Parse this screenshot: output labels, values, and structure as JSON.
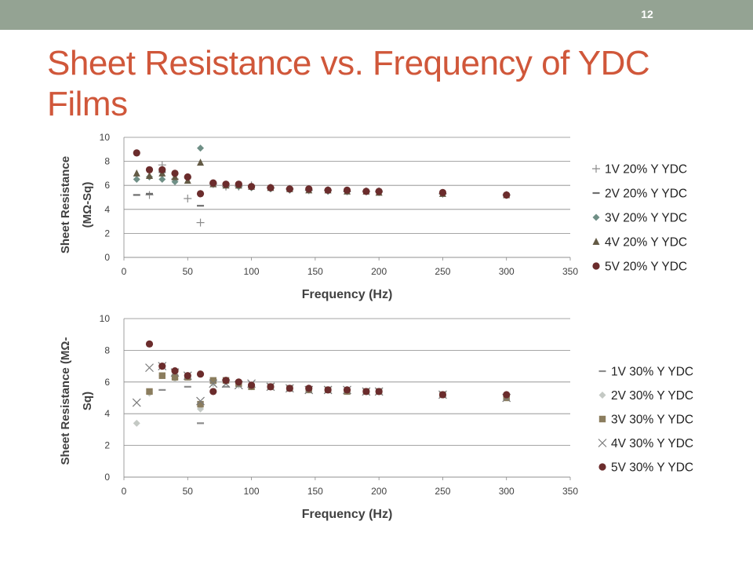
{
  "slide": {
    "page_number": "12",
    "title": "Sheet Resistance vs. Frequency of YDC Films"
  },
  "colors": {
    "topbar": "#94a393",
    "title": "#d0573a",
    "gridline": "#888888",
    "axis_text": "#404040"
  },
  "chart_data": [
    {
      "type": "scatter",
      "title": "",
      "xlabel": "Frequency (Hz)",
      "ylabel_lines": [
        "Sheet Resistance",
        "(MΩ-Sq)"
      ],
      "xlim": [
        0,
        350
      ],
      "ylim": [
        0,
        10
      ],
      "xticks": [
        0,
        50,
        100,
        150,
        200,
        250,
        300,
        350
      ],
      "yticks": [
        0,
        2,
        4,
        6,
        8,
        10
      ],
      "grid": "horizontal",
      "legend_position": "right",
      "series": [
        {
          "name": "1V 20% Y YDC",
          "marker": "plus",
          "color": "#8c8c8c",
          "x": [
            20,
            30,
            50,
            60,
            70,
            80,
            90,
            100,
            115,
            130,
            145,
            160,
            175,
            190,
            200,
            250,
            300
          ],
          "y": [
            5.2,
            7.7,
            4.9,
            2.9,
            6.1,
            5.9,
            5.9,
            6.0,
            5.8,
            5.7,
            5.6,
            5.6,
            5.5,
            5.5,
            5.5,
            5.3,
            5.2
          ]
        },
        {
          "name": "2V 20% Y YDC",
          "marker": "dash",
          "color": "#6e6e6e",
          "x": [
            10,
            20,
            30,
            40,
            50,
            60,
            70,
            80,
            90,
            100,
            115,
            130,
            145,
            160,
            175,
            190,
            200,
            250,
            300
          ],
          "y": [
            5.2,
            5.3,
            7.1,
            6.5,
            6.7,
            4.3,
            6.2,
            6.1,
            6.0,
            5.9,
            5.8,
            5.7,
            5.6,
            5.6,
            5.5,
            5.5,
            5.5,
            5.3,
            5.2
          ]
        },
        {
          "name": "3V 20% Y YDC",
          "marker": "diamond",
          "color": "#6f8f86",
          "x": [
            10,
            20,
            30,
            40,
            50,
            60,
            70,
            80,
            90,
            100,
            115,
            130,
            145,
            160,
            175,
            190,
            200,
            250,
            300
          ],
          "y": [
            6.5,
            6.7,
            6.5,
            6.3,
            6.6,
            9.1,
            6.2,
            6.0,
            5.9,
            5.8,
            5.7,
            5.6,
            5.6,
            5.5,
            5.5,
            5.5,
            5.4,
            5.3,
            5.2
          ]
        },
        {
          "name": "4V 20% Y YDC",
          "marker": "triangle",
          "color": "#635a45",
          "x": [
            10,
            20,
            30,
            40,
            50,
            60,
            70,
            80,
            90,
            100,
            115,
            130,
            145,
            160,
            175,
            190,
            200,
            250,
            300
          ],
          "y": [
            7.0,
            6.8,
            7.0,
            6.7,
            6.4,
            7.9,
            6.1,
            6.0,
            6.0,
            5.9,
            5.8,
            5.7,
            5.6,
            5.6,
            5.5,
            5.5,
            5.4,
            5.3,
            5.2
          ]
        },
        {
          "name": "5V 20% Y YDC",
          "marker": "circle",
          "color": "#6b2c2c",
          "x": [
            10,
            20,
            30,
            40,
            50,
            60,
            70,
            80,
            90,
            100,
            115,
            130,
            145,
            160,
            175,
            190,
            200,
            250,
            300
          ],
          "y": [
            8.7,
            7.3,
            7.3,
            7.0,
            6.7,
            5.3,
            6.2,
            6.1,
            6.1,
            5.9,
            5.8,
            5.7,
            5.7,
            5.6,
            5.6,
            5.5,
            5.5,
            5.4,
            5.2
          ]
        }
      ]
    },
    {
      "type": "scatter",
      "title": "",
      "xlabel": "Frequency (Hz)",
      "ylabel_lines": [
        "Sheet Resistance (MΩ-",
        "Sq)"
      ],
      "xlim": [
        0,
        350
      ],
      "ylim": [
        0,
        10
      ],
      "xticks": [
        0,
        50,
        100,
        150,
        200,
        250,
        300,
        350
      ],
      "yticks": [
        0,
        2,
        4,
        6,
        8,
        10
      ],
      "grid": "horizontal",
      "legend_position": "right",
      "series": [
        {
          "name": "1V 30% Y YDC",
          "marker": "dash",
          "color": "#8c8c8c",
          "x": [
            30,
            50,
            60,
            80
          ],
          "y": [
            5.5,
            5.7,
            3.4,
            5.7
          ]
        },
        {
          "name": "2V 30% Y YDC",
          "marker": "diamond",
          "color": "#c4c9c4",
          "x": [
            10,
            20,
            30,
            40,
            50,
            60,
            70,
            80,
            90,
            100,
            115,
            130,
            145,
            160,
            175,
            190,
            200,
            250,
            300
          ],
          "y": [
            3.4,
            5.3,
            6.4,
            6.2,
            6.3,
            4.3,
            5.9,
            6.0,
            5.8,
            5.7,
            5.7,
            5.6,
            5.5,
            5.5,
            5.4,
            5.4,
            5.4,
            5.2,
            5.1
          ]
        },
        {
          "name": "3V 30% Y YDC",
          "marker": "square",
          "color": "#8b7d5e",
          "x": [
            20,
            30,
            40,
            50,
            60,
            70,
            80,
            90,
            100,
            115,
            130,
            145,
            160,
            175,
            190,
            200,
            250,
            300
          ],
          "y": [
            5.4,
            6.4,
            6.3,
            6.3,
            4.6,
            6.1,
            6.1,
            5.9,
            5.7,
            5.7,
            5.6,
            5.5,
            5.5,
            5.4,
            5.4,
            5.4,
            5.2,
            5.0
          ]
        },
        {
          "name": "4V 30% Y YDC",
          "marker": "x",
          "color": "#7a7a7a",
          "x": [
            10,
            20,
            30,
            40,
            50,
            60,
            70,
            80,
            90,
            100,
            115,
            130,
            145,
            160,
            175,
            190,
            200,
            250,
            300
          ],
          "y": [
            4.7,
            6.9,
            7.0,
            6.6,
            6.4,
            4.8,
            5.9,
            5.9,
            5.8,
            5.9,
            5.7,
            5.6,
            5.5,
            5.5,
            5.5,
            5.4,
            5.4,
            5.2,
            5.0
          ]
        },
        {
          "name": "5V 30% Y YDC",
          "marker": "circle",
          "color": "#6b2c2c",
          "x": [
            20,
            30,
            40,
            50,
            60,
            70,
            80,
            90,
            100,
            115,
            130,
            145,
            160,
            175,
            190,
            200,
            250,
            300
          ],
          "y": [
            8.4,
            7.0,
            6.7,
            6.4,
            6.5,
            5.4,
            6.1,
            6.0,
            5.8,
            5.7,
            5.6,
            5.6,
            5.5,
            5.5,
            5.4,
            5.4,
            5.2,
            5.2
          ]
        }
      ]
    }
  ]
}
